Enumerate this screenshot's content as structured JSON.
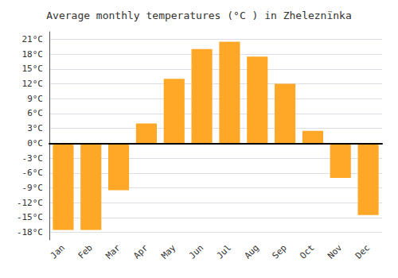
{
  "chart_data": {
    "type": "bar",
    "title": "Average monthly temperatures (°C ) in Zheleznïnka",
    "categories": [
      "Jan",
      "Feb",
      "Mar",
      "Apr",
      "May",
      "Jun",
      "Jul",
      "Aug",
      "Sep",
      "Oct",
      "Nov",
      "Dec"
    ],
    "values": [
      -17.5,
      -17.5,
      -9.5,
      4.0,
      13.0,
      19.0,
      20.5,
      17.5,
      12.0,
      2.5,
      -7.0,
      -14.5
    ],
    "color": "#FFA726",
    "ylim": [
      -19.5,
      22.5
    ],
    "yticks": [
      {
        "value": -18,
        "label": "-18°C"
      },
      {
        "value": -15,
        "label": "-15°C"
      },
      {
        "value": -12,
        "label": "-12°C"
      },
      {
        "value": -9,
        "label": "-9°C"
      },
      {
        "value": -6,
        "label": "-6°C"
      },
      {
        "value": -3,
        "label": "-3°C"
      },
      {
        "value": 0,
        "label": "0°C"
      },
      {
        "value": 3,
        "label": "3°C"
      },
      {
        "value": 6,
        "label": "6°C"
      },
      {
        "value": 9,
        "label": "9°C"
      },
      {
        "value": 12,
        "label": "12°C"
      },
      {
        "value": 15,
        "label": "15°C"
      },
      {
        "value": 18,
        "label": "18°C"
      },
      {
        "value": 21,
        "label": "21°C"
      }
    ],
    "grid": true
  }
}
